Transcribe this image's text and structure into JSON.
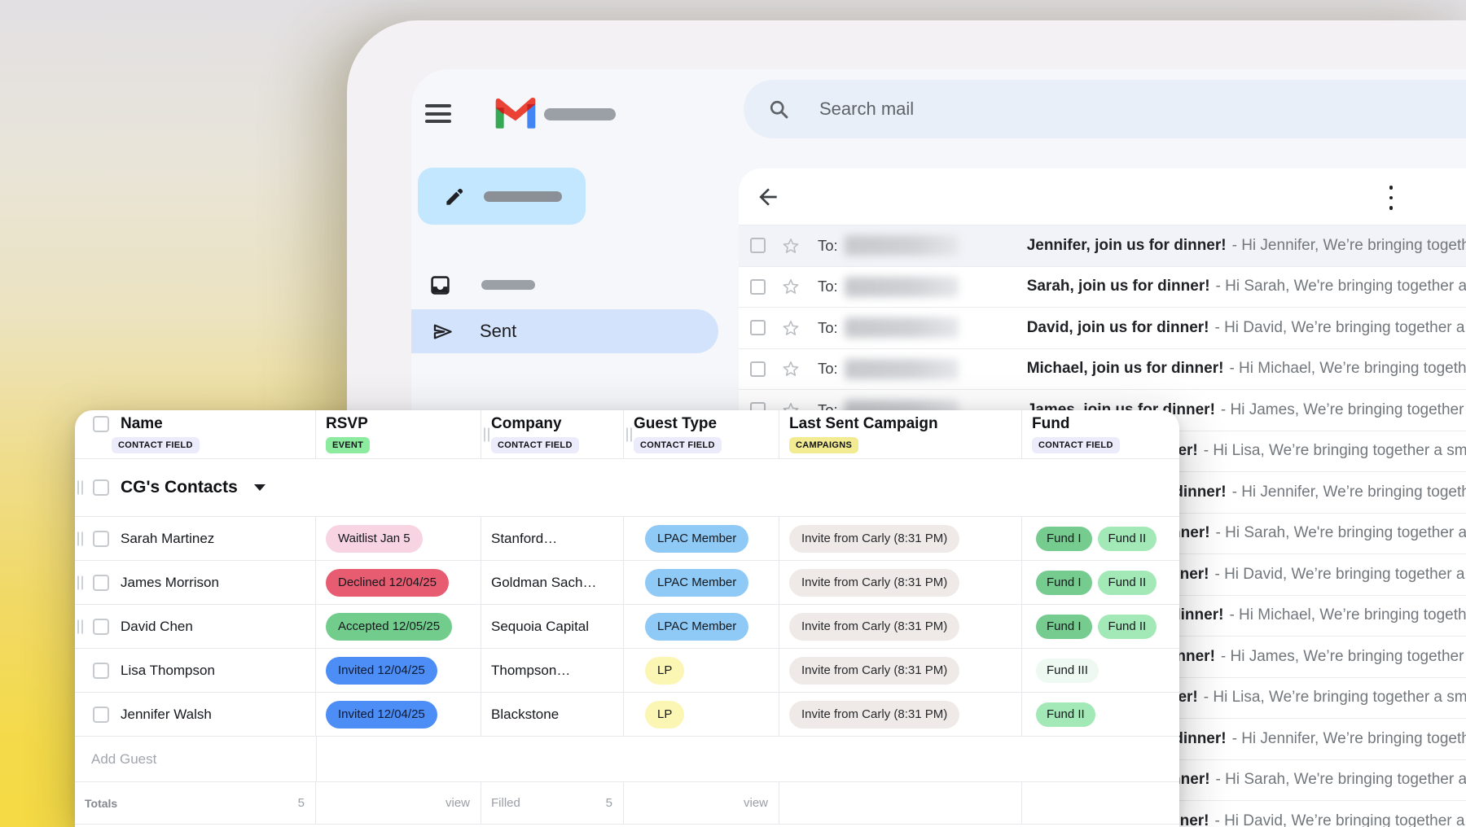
{
  "colors": {
    "frame": "#f3f1f3",
    "gmail_bg": "#f6f7fb",
    "search_bg": "#e9eff9",
    "compose_bg": "#c3e7fe",
    "sent_bg": "#d3e3fc",
    "panel_bg": "#ffffff",
    "row_read_bg": "#f1f3f8",
    "divider": "#e9ebee",
    "subject": "#1f2125",
    "preview": "#72777c",
    "table_border": "#e6e8ec",
    "badge_field": "#ecebfb",
    "badge_event": "#8ceb9f",
    "badge_campaigns": "#f3eb92",
    "pill_waitlist": "#f8d3e1",
    "pill_declined": "#e75c71",
    "pill_accepted": "#72cd8d",
    "pill_invited": "#4c8df6",
    "pill_lpac": "#8fcaf7",
    "pill_lp": "#fcf6b5",
    "pill_campaign": "#efeae7",
    "pill_fund1": "#76cc8f",
    "pill_fund2": "#a3e8b7",
    "pill_fund3": "#edf9f1",
    "logo_red": "#ea4335",
    "logo_dark_red": "#c5221f",
    "logo_green": "#34a853",
    "logo_blue": "#4285f4"
  },
  "gmail": {
    "search": {
      "placeholder": "Search mail"
    },
    "sidebar": {
      "sent_label": "Sent"
    },
    "email_list": {
      "to_label": "To:",
      "rows": [
        {
          "subject": "Jennifer, join us for dinner!",
          "preview": "- Hi Jennifer, We’re bringing together a small group of friends"
        },
        {
          "subject": "Sarah, join us for dinner!",
          "preview": "- Hi Sarah, We're bringing together a small group of friends"
        },
        {
          "subject": "David, join us for dinner!",
          "preview": "- Hi David, We’re bringing together a small group of friends"
        },
        {
          "subject": "Michael, join us for dinner!",
          "preview": "- Hi Michael, We’re bringing together a small group of friends"
        },
        {
          "subject": "James, join us for dinner!",
          "preview": "- Hi James, We’re bringing together a small group of friends"
        },
        {
          "subject": "Lisa, join us for dinner!",
          "preview": "- Hi Lisa, We’re bringing together a small group of friends"
        },
        {
          "subject": "Jennifer, join us for dinner!",
          "preview": "- Hi Jennifer, We’re bringing together a small group of friends"
        },
        {
          "subject": "Sarah, join us for dinner!",
          "preview": "- Hi Sarah, We're bringing together a small group of friends"
        },
        {
          "subject": "David, join us for dinner!",
          "preview": "- Hi David, We’re bringing together a small group of friends"
        },
        {
          "subject": "Michael, join us for dinner!",
          "preview": "- Hi Michael, We’re bringing together a small group of friends"
        },
        {
          "subject": "James, join us for dinner!",
          "preview": "- Hi James, We’re bringing together a small group of friends"
        },
        {
          "subject": "Lisa, join us for dinner!",
          "preview": "- Hi Lisa, We’re bringing together a small group of friends"
        },
        {
          "subject": "Jennifer, join us for dinner!",
          "preview": "- Hi Jennifer, We’re bringing together a small group of friends"
        },
        {
          "subject": "Sarah, join us for dinner!",
          "preview": "- Hi Sarah, We're bringing together a small group of friends"
        },
        {
          "subject": "David, join us for dinner!",
          "preview": "- Hi David, We’re bringing together a small group of friends"
        }
      ]
    }
  },
  "table": {
    "columns": [
      {
        "label": "Name",
        "badge": "CONTACT FIELD"
      },
      {
        "label": "RSVP",
        "badge": "EVENT"
      },
      {
        "label": "Company",
        "badge": "CONTACT FIELD"
      },
      {
        "label": "Guest Type",
        "badge": "CONTACT FIELD"
      },
      {
        "label": "Last Sent Campaign",
        "badge": "CAMPAIGNS"
      },
      {
        "label": "Fund",
        "badge": "CONTACT FIELD"
      }
    ],
    "group_title": "CG's Contacts",
    "rows": [
      {
        "name": "Sarah Martinez",
        "drag_handle": true,
        "rsvp": {
          "text": "Waitlist Jan 5",
          "variant": "waitlist"
        },
        "company": "Stanford…",
        "guest_type": {
          "text": "LPAC Member",
          "variant": "lpac"
        },
        "campaign": "Invite from Carly (8:31 PM)",
        "funds": [
          {
            "text": "Fund I",
            "variant": "fund1"
          },
          {
            "text": "Fund II",
            "variant": "fund2"
          }
        ]
      },
      {
        "name": "James Morrison",
        "drag_handle": true,
        "rsvp": {
          "text": "Declined 12/04/25",
          "variant": "declined"
        },
        "company": "Goldman Sach…",
        "guest_type": {
          "text": "LPAC Member",
          "variant": "lpac"
        },
        "campaign": "Invite from Carly (8:31 PM)",
        "funds": [
          {
            "text": "Fund I",
            "variant": "fund1"
          },
          {
            "text": "Fund II",
            "variant": "fund2"
          }
        ]
      },
      {
        "name": "David Chen",
        "drag_handle": true,
        "rsvp": {
          "text": "Accepted 12/05/25",
          "variant": "accepted"
        },
        "company": "Sequoia Capital",
        "guest_type": {
          "text": "LPAC Member",
          "variant": "lpac"
        },
        "campaign": "Invite from Carly (8:31 PM)",
        "funds": [
          {
            "text": "Fund I",
            "variant": "fund1"
          },
          {
            "text": "Fund II",
            "variant": "fund2"
          }
        ]
      },
      {
        "name": "Lisa Thompson",
        "drag_handle": false,
        "rsvp": {
          "text": "Invited 12/04/25",
          "variant": "invited"
        },
        "company": "Thompson…",
        "guest_type": {
          "text": "LP",
          "variant": "lp"
        },
        "campaign": "Invite from Carly (8:31 PM)",
        "funds": [
          {
            "text": "Fund III",
            "variant": "fund3"
          }
        ]
      },
      {
        "name": "Jennifer Walsh",
        "drag_handle": false,
        "rsvp": {
          "text": "Invited 12/04/25",
          "variant": "invited"
        },
        "company": "Blackstone",
        "guest_type": {
          "text": "LP",
          "variant": "lp"
        },
        "campaign": "Invite from Carly (8:31 PM)",
        "funds": [
          {
            "text": "Fund II",
            "variant": "fund2"
          }
        ]
      }
    ],
    "add_guest_label": "Add Guest",
    "totals": {
      "label": "Totals",
      "name_count": "5",
      "rsvp_view_label": "view",
      "filled_label": "Filled",
      "filled_count": "5",
      "guest_view_label": "view"
    }
  }
}
